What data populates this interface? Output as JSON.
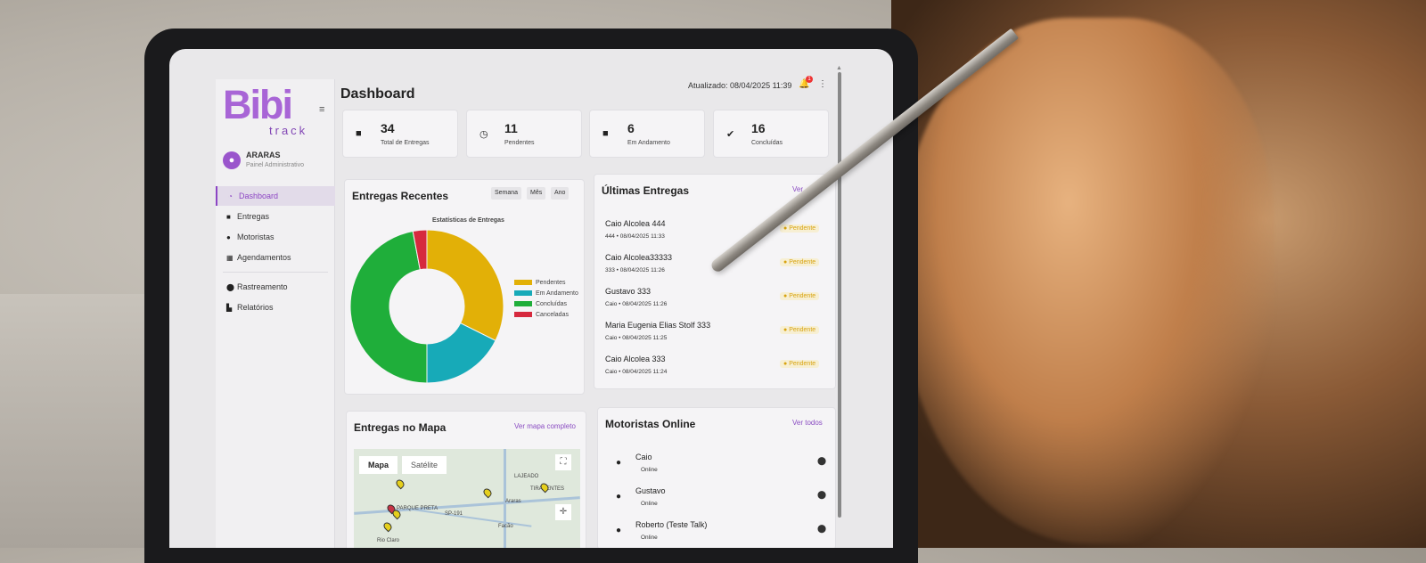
{
  "app": {
    "logo_main": "Bibi",
    "logo_sub": "track",
    "page_title": "Dashboard",
    "updated_text": "Atualizado: 08/04/2025 11:39",
    "notification_count": "1"
  },
  "profile": {
    "name": "ARARAS",
    "role": "Painel Administrativo"
  },
  "nav": [
    {
      "label": "Dashboard",
      "icon": "dashboard-icon",
      "active": true
    },
    {
      "label": "Entregas",
      "icon": "truck-icon"
    },
    {
      "label": "Motoristas",
      "icon": "user-icon"
    },
    {
      "label": "Agendamentos",
      "icon": "calendar-icon"
    },
    {
      "label": "Rastreamento",
      "icon": "location-pin-icon"
    },
    {
      "label": "Relatórios",
      "icon": "chart-icon"
    }
  ],
  "stats": [
    {
      "value": "34",
      "label": "Total de Entregas",
      "icon": "truck-icon"
    },
    {
      "value": "11",
      "label": "Pendentes",
      "icon": "clock-icon"
    },
    {
      "value": "6",
      "label": "Em Andamento",
      "icon": "truck-fast-icon"
    },
    {
      "value": "16",
      "label": "Concluídas",
      "icon": "check-circle-icon"
    }
  ],
  "recent": {
    "title": "Entregas Recentes",
    "periods": [
      "Semana",
      "Mês",
      "Ano"
    ],
    "chart_title": "Estatísticas de Entregas"
  },
  "chart_data": {
    "type": "pie",
    "title": "Estatísticas de Entregas",
    "categories": [
      "Pendentes",
      "Em Andamento",
      "Concluídas",
      "Canceladas"
    ],
    "values": [
      11,
      6,
      16,
      1
    ],
    "colors": [
      "#e2b007",
      "#17aab8",
      "#1fae3a",
      "#d6293e"
    ],
    "legend": "right"
  },
  "last": {
    "title": "Últimas Entregas",
    "link": "Ver",
    "items": [
      {
        "name": "Caio Alcolea 444",
        "meta": "444  •  08/04/2025 11:33",
        "status": "Pendente"
      },
      {
        "name": "Caio Alcolea33333",
        "meta": "333  •  08/04/2025 11:26",
        "status": "Pendente"
      },
      {
        "name": "Gustavo 333",
        "meta": "Caio  •  08/04/2025 11:26",
        "status": "Pendente"
      },
      {
        "name": "Maria Eugenia Elias Stolf 333",
        "meta": "Caio  •  08/04/2025 11:25",
        "status": "Pendente"
      },
      {
        "name": "Caio Alcolea 333",
        "meta": "Caio  •  08/04/2025 11:24",
        "status": "Pendente"
      }
    ]
  },
  "map": {
    "title": "Entregas no Mapa",
    "link": "Ver mapa completo",
    "tab_map": "Mapa",
    "tab_sat": "Satélite",
    "labels": [
      "LAJEADO",
      "TIRADENTES",
      "Araras",
      "SP-191",
      "Facão",
      "Rio Claro",
      "PARQUE PRETA"
    ]
  },
  "drivers": {
    "title": "Motoristas Online",
    "link": "Ver todos",
    "items": [
      {
        "name": "Caio",
        "status": "Online"
      },
      {
        "name": "Gustavo",
        "status": "Online"
      },
      {
        "name": "Roberto (Teste Talk)",
        "status": "Online"
      }
    ]
  }
}
